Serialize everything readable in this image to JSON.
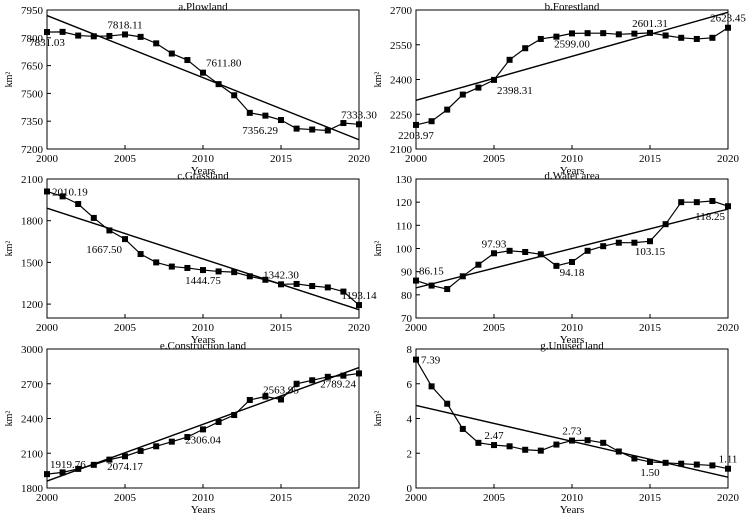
{
  "chart_data": [
    {
      "type": "line",
      "title": "a.Plowland",
      "xlabel": "Years",
      "ylabel": "km²",
      "x": [
        2000,
        2001,
        2002,
        2003,
        2004,
        2005,
        2006,
        2007,
        2008,
        2009,
        2010,
        2011,
        2012,
        2013,
        2014,
        2015,
        2016,
        2017,
        2018,
        2019,
        2020
      ],
      "values": [
        7831.03,
        7832,
        7812,
        7808,
        7810,
        7818.11,
        7805,
        7770,
        7715,
        7680,
        7611.8,
        7550,
        7490,
        7395,
        7380,
        7356.29,
        7310,
        7305,
        7300,
        7340,
        7333.3
      ],
      "trend": [
        7920,
        7250
      ],
      "xlim": [
        2000,
        2020
      ],
      "ylim": [
        7200,
        7950
      ],
      "yticks": [
        "7950",
        "7800",
        "7650",
        "7500",
        "7350",
        "7200"
      ],
      "xticks": [
        "2000",
        "2005",
        "2010",
        "2015",
        "2020"
      ],
      "labels": [
        {
          "i": 0,
          "text": "7831.03",
          "pos": "below"
        },
        {
          "i": 5,
          "text": "7818.11",
          "pos": "above"
        },
        {
          "i": 10,
          "text": "7611.80",
          "pos": "above-right"
        },
        {
          "i": 15,
          "text": "7356.29",
          "pos": "below-left"
        },
        {
          "i": 20,
          "text": "7333.30",
          "pos": "above"
        }
      ]
    },
    {
      "type": "line",
      "title": "b.Forestland",
      "xlabel": "Years",
      "ylabel": "km²",
      "x": [
        2000,
        2001,
        2002,
        2003,
        2004,
        2005,
        2006,
        2007,
        2008,
        2009,
        2010,
        2011,
        2012,
        2013,
        2014,
        2015,
        2016,
        2017,
        2018,
        2019,
        2020
      ],
      "values": [
        2203.97,
        2220,
        2270,
        2335,
        2365,
        2398.31,
        2485,
        2535,
        2575,
        2585,
        2599.0,
        2600,
        2600,
        2595,
        2598,
        2601.31,
        2590,
        2580,
        2575,
        2580,
        2623.45
      ],
      "trend": [
        2310,
        2690
      ],
      "xlim": [
        2000,
        2020
      ],
      "ylim": [
        2100,
        2700
      ],
      "yticks": [
        "2700",
        "2550",
        "2400",
        "2250",
        "2100"
      ],
      "xticks": [
        "2000",
        "2005",
        "2010",
        "2015",
        "2020"
      ],
      "labels": [
        {
          "i": 0,
          "text": "2203.97",
          "pos": "below"
        },
        {
          "i": 5,
          "text": "2398.31",
          "pos": "below-right"
        },
        {
          "i": 10,
          "text": "2599.00",
          "pos": "below"
        },
        {
          "i": 15,
          "text": "2601.31",
          "pos": "above"
        },
        {
          "i": 20,
          "text": "2623.45",
          "pos": "above"
        }
      ]
    },
    {
      "type": "line",
      "title": "c.Grassland",
      "xlabel": "Years",
      "ylabel": "km²",
      "x": [
        2000,
        2001,
        2002,
        2003,
        2004,
        2005,
        2006,
        2007,
        2008,
        2009,
        2010,
        2011,
        2012,
        2013,
        2014,
        2015,
        2016,
        2017,
        2018,
        2019,
        2020
      ],
      "values": [
        2010.19,
        1975,
        1920,
        1820,
        1730,
        1667.5,
        1560,
        1500,
        1470,
        1460,
        1444.75,
        1435,
        1430,
        1400,
        1375,
        1342.3,
        1345,
        1330,
        1320,
        1290,
        1193.14
      ],
      "trend": [
        1890,
        1160
      ],
      "xlim": [
        2000,
        2020
      ],
      "ylim": [
        1100,
        2100
      ],
      "yticks": [
        "2100",
        "1800",
        "1500",
        "1200"
      ],
      "xticks": [
        "2000",
        "2005",
        "2010",
        "2015",
        "2020"
      ],
      "labels": [
        {
          "i": 0,
          "text": "2010.19",
          "pos": "right"
        },
        {
          "i": 5,
          "text": "1667.50",
          "pos": "below-left"
        },
        {
          "i": 10,
          "text": "1444.75",
          "pos": "below"
        },
        {
          "i": 15,
          "text": "1342.30",
          "pos": "above"
        },
        {
          "i": 20,
          "text": "1193.14",
          "pos": "above"
        }
      ]
    },
    {
      "type": "line",
      "title": "d.Water area",
      "xlabel": "Years",
      "ylabel": "km²",
      "x": [
        2000,
        2001,
        2002,
        2003,
        2004,
        2005,
        2006,
        2007,
        2008,
        2009,
        2010,
        2011,
        2012,
        2013,
        2014,
        2015,
        2016,
        2017,
        2018,
        2019,
        2020
      ],
      "values": [
        86.15,
        84,
        82.5,
        88,
        93,
        97.93,
        99,
        98.5,
        97.5,
        92.5,
        94.18,
        99,
        101,
        102.5,
        102.5,
        103.15,
        110.5,
        120,
        120,
        120.5,
        118.25
      ],
      "trend": [
        83,
        117
      ],
      "xlim": [
        2000,
        2020
      ],
      "ylim": [
        70,
        130
      ],
      "yticks": [
        "130",
        "120",
        "110",
        "100",
        "90",
        "80",
        "70"
      ],
      "xticks": [
        "2000",
        "2005",
        "2010",
        "2015",
        "2020"
      ],
      "labels": [
        {
          "i": 0,
          "text": "86.15",
          "pos": "above-right"
        },
        {
          "i": 5,
          "text": "97.93",
          "pos": "above"
        },
        {
          "i": 10,
          "text": "94.18",
          "pos": "below"
        },
        {
          "i": 15,
          "text": "103.15",
          "pos": "below"
        },
        {
          "i": 20,
          "text": "118.25",
          "pos": "below-left"
        }
      ]
    },
    {
      "type": "line",
      "title": "e.Construction land",
      "xlabel": "Years",
      "ylabel": "km²",
      "x": [
        2000,
        2001,
        2002,
        2003,
        2004,
        2005,
        2006,
        2007,
        2008,
        2009,
        2010,
        2011,
        2012,
        2013,
        2014,
        2015,
        2016,
        2017,
        2018,
        2019,
        2020
      ],
      "values": [
        1919.76,
        1935,
        1965,
        2000,
        2045,
        2074.17,
        2120,
        2160,
        2200,
        2240,
        2306.04,
        2370,
        2430,
        2560,
        2590,
        2563.95,
        2700,
        2730,
        2760,
        2770,
        2789.24
      ],
      "trend": [
        1860,
        2840
      ],
      "xlim": [
        2000,
        2020
      ],
      "ylim": [
        1800,
        3000
      ],
      "yticks": [
        "3000",
        "2700",
        "2400",
        "2100",
        "1800"
      ],
      "xticks": [
        "2000",
        "2005",
        "2010",
        "2015",
        "2020"
      ],
      "labels": [
        {
          "i": 0,
          "text": "1919.76",
          "pos": "above-right"
        },
        {
          "i": 5,
          "text": "2074.17",
          "pos": "below"
        },
        {
          "i": 10,
          "text": "2306.04",
          "pos": "below"
        },
        {
          "i": 15,
          "text": "2563.95",
          "pos": "above"
        },
        {
          "i": 20,
          "text": "2789.24",
          "pos": "below-left"
        }
      ]
    },
    {
      "type": "line",
      "title": "g.Unused land",
      "xlabel": "Years",
      "ylabel": "km²",
      "x": [
        2000,
        2001,
        2002,
        2003,
        2004,
        2005,
        2006,
        2007,
        2008,
        2009,
        2010,
        2011,
        2012,
        2013,
        2014,
        2015,
        2016,
        2017,
        2018,
        2019,
        2020
      ],
      "values": [
        7.39,
        5.85,
        4.85,
        3.4,
        2.6,
        2.47,
        2.4,
        2.2,
        2.15,
        2.5,
        2.73,
        2.75,
        2.6,
        2.1,
        1.7,
        1.5,
        1.45,
        1.4,
        1.35,
        1.3,
        1.11
      ],
      "trend": [
        4.75,
        0.62
      ],
      "xlim": [
        2000,
        2020
      ],
      "ylim": [
        0,
        8
      ],
      "yticks": [
        "8",
        "6",
        "4",
        "2",
        "0"
      ],
      "xticks": [
        "2000",
        "2005",
        "2010",
        "2015",
        "2020"
      ],
      "labels": [
        {
          "i": 0,
          "text": "7.39",
          "pos": "right"
        },
        {
          "i": 5,
          "text": "2.47",
          "pos": "above"
        },
        {
          "i": 10,
          "text": "2.73",
          "pos": "above"
        },
        {
          "i": 15,
          "text": "1.50",
          "pos": "below"
        },
        {
          "i": 20,
          "text": "1.11",
          "pos": "above"
        }
      ]
    }
  ]
}
